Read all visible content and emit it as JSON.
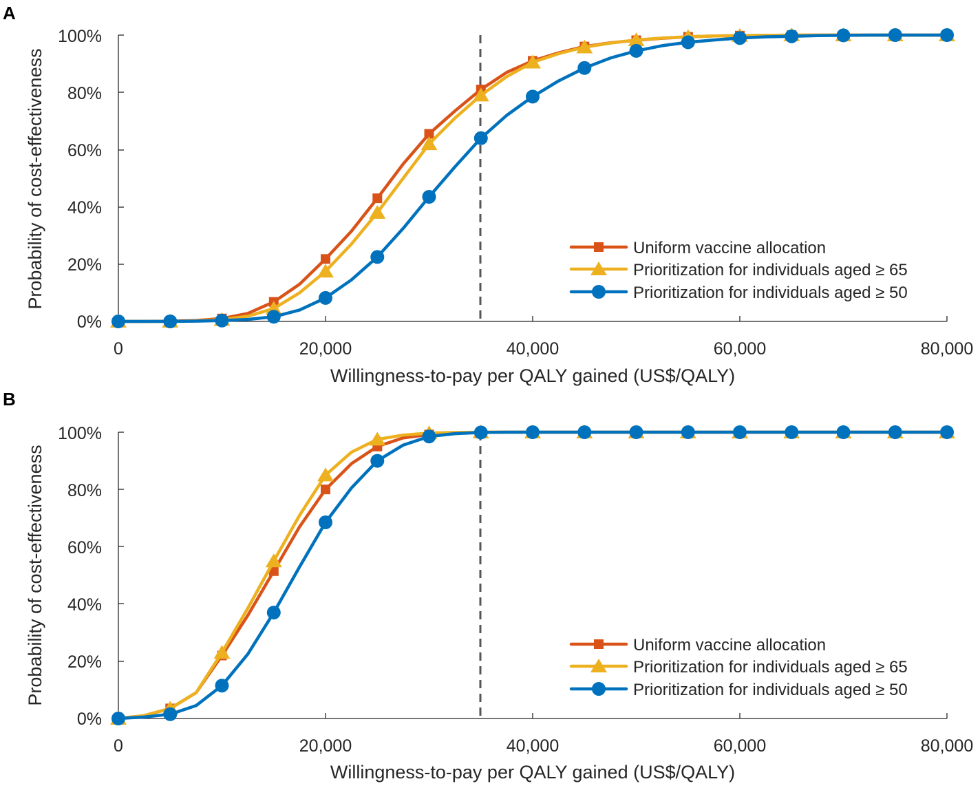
{
  "colors": {
    "uniform": "#D95319",
    "age65": "#EDB120",
    "age50": "#0072BD",
    "threshold": "#555555",
    "axis": "#262626"
  },
  "chart_data": [
    {
      "panel": "A",
      "type": "line",
      "xlabel": "Willingness-to-pay per QALY gained (US$/QALY)",
      "ylabel": "Probability of cost-effectiveness",
      "xlim": [
        0,
        80000
      ],
      "ylim": [
        0,
        100
      ],
      "xticks": [
        0,
        20000,
        40000,
        60000,
        80000
      ],
      "xtick_labels": [
        "0",
        "20,000",
        "40,000",
        "60,000",
        "80,000"
      ],
      "yticks": [
        0,
        20,
        40,
        60,
        80,
        100
      ],
      "ytick_labels": [
        "0%",
        "20%",
        "40%",
        "60%",
        "80%",
        "100%"
      ],
      "threshold_x": 35000,
      "legend_position": "bottom-right",
      "x": [
        0,
        2500,
        5000,
        7500,
        10000,
        12500,
        15000,
        17500,
        20000,
        22500,
        25000,
        27500,
        30000,
        32500,
        35000,
        37500,
        40000,
        42500,
        45000,
        47500,
        50000,
        52500,
        55000,
        57500,
        60000,
        62500,
        65000,
        67500,
        70000,
        72500,
        75000,
        77500,
        80000
      ],
      "marker_every": 2,
      "series": [
        {
          "name": "Uniform vaccine allocation",
          "color_key": "uniform",
          "marker": "square",
          "values": [
            0,
            0,
            0.1,
            0.3,
            1,
            2.8,
            6.8,
            13,
            21.8,
            31.5,
            43,
            55,
            65.5,
            73.5,
            81,
            87,
            91,
            93.8,
            96,
            97.3,
            98.2,
            98.9,
            99.4,
            99.7,
            99.8,
            99.9,
            100,
            100,
            100,
            100,
            100,
            100,
            100
          ]
        },
        {
          "name": "Prioritization for individuals aged ≥ 65",
          "color_key": "age65",
          "marker": "triangle",
          "values": [
            0,
            0,
            0,
            0.2,
            0.6,
            1.8,
            4.5,
            10,
            17.5,
            27,
            38,
            50,
            62,
            71,
            79,
            85.5,
            90.5,
            93.5,
            95.8,
            97.2,
            98.3,
            99,
            99.4,
            99.7,
            99.8,
            99.9,
            100,
            100,
            100,
            100,
            100,
            100,
            100
          ]
        },
        {
          "name": "Prioritization for individuals aged ≥ 50",
          "color_key": "age50",
          "marker": "circle",
          "values": [
            0,
            0,
            0,
            0.1,
            0.3,
            0.7,
            1.6,
            4,
            8.2,
            14.5,
            22.5,
            32.5,
            43.5,
            54,
            64,
            72,
            78.5,
            84,
            88.5,
            92,
            94.5,
            96.3,
            97.5,
            98.3,
            99,
            99.4,
            99.6,
            99.8,
            99.9,
            100,
            100,
            100,
            100
          ]
        }
      ]
    },
    {
      "panel": "B",
      "type": "line",
      "xlabel": "Willingness-to-pay per QALY gained (US$/QALY)",
      "ylabel": "Probability of cost-effectiveness",
      "xlim": [
        0,
        80000
      ],
      "ylim": [
        0,
        100
      ],
      "xticks": [
        0,
        20000,
        40000,
        60000,
        80000
      ],
      "xtick_labels": [
        "0",
        "20,000",
        "40,000",
        "60,000",
        "80,000"
      ],
      "yticks": [
        0,
        20,
        40,
        60,
        80,
        100
      ],
      "ytick_labels": [
        "0%",
        "20%",
        "40%",
        "60%",
        "80%",
        "100%"
      ],
      "threshold_x": 35000,
      "legend_position": "bottom-right",
      "x": [
        0,
        2500,
        5000,
        7500,
        10000,
        12500,
        15000,
        17500,
        20000,
        22500,
        25000,
        27500,
        30000,
        32500,
        35000,
        37500,
        40000,
        42500,
        45000,
        47500,
        50000,
        52500,
        55000,
        57500,
        60000,
        62500,
        65000,
        67500,
        70000,
        72500,
        75000,
        77500,
        80000
      ],
      "marker_every": 2,
      "series": [
        {
          "name": "Uniform vaccine allocation",
          "color_key": "uniform",
          "marker": "square",
          "values": [
            0,
            1,
            3.5,
            9,
            22,
            36,
            51.5,
            67,
            80,
            89,
            95,
            98,
            99.2,
            99.7,
            100,
            100,
            100,
            100,
            100,
            100,
            100,
            100,
            100,
            100,
            100,
            100,
            100,
            100,
            100,
            100,
            100,
            100,
            100
          ]
        },
        {
          "name": "Prioritization for individuals aged ≥ 65",
          "color_key": "age65",
          "marker": "triangle",
          "values": [
            0,
            1,
            3.5,
            9,
            23,
            38.5,
            55,
            71,
            85,
            93,
            97.5,
            99,
            99.7,
            99.9,
            100,
            100,
            100,
            100,
            100,
            100,
            100,
            100,
            100,
            100,
            100,
            100,
            100,
            100,
            100,
            100,
            100,
            100,
            100
          ]
        },
        {
          "name": "Prioritization for individuals aged ≥ 50",
          "color_key": "age50",
          "marker": "circle",
          "values": [
            0,
            0.5,
            1.5,
            4.5,
            11.5,
            22.5,
            37,
            53,
            68.5,
            80.5,
            90,
            95.5,
            98.5,
            99.5,
            99.9,
            100,
            100,
            100,
            100,
            100,
            100,
            100,
            100,
            100,
            100,
            100,
            100,
            100,
            100,
            100,
            100,
            100,
            100
          ]
        }
      ]
    }
  ]
}
